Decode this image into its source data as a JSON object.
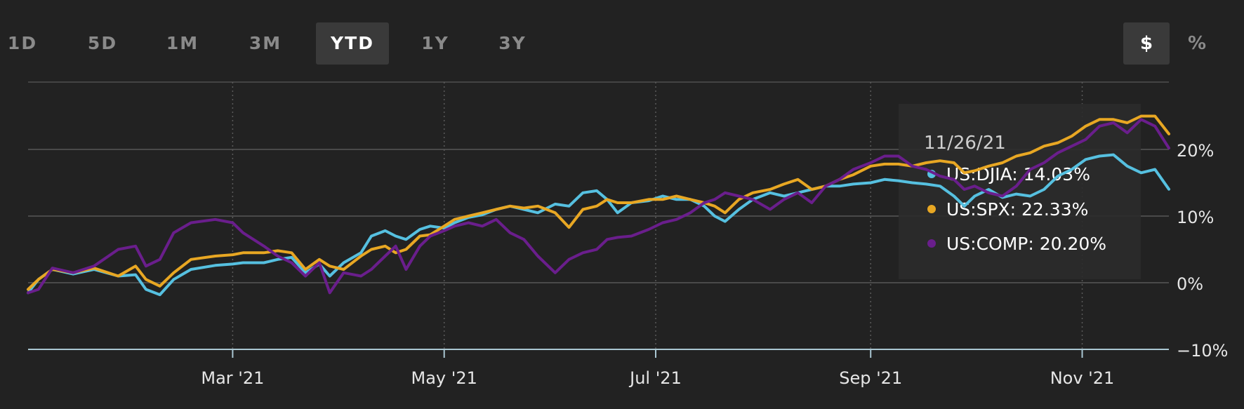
{
  "range_tabs": [
    {
      "label": "1D",
      "active": false
    },
    {
      "label": "5D",
      "active": false
    },
    {
      "label": "1M",
      "active": false
    },
    {
      "label": "3M",
      "active": false
    },
    {
      "label": "YTD",
      "active": true
    },
    {
      "label": "1Y",
      "active": false
    },
    {
      "label": "3Y",
      "active": false
    }
  ],
  "unit_toggle": {
    "dollar": "$",
    "percent": "%",
    "active": "$"
  },
  "colors": {
    "background": "#222222",
    "grid": "#444444",
    "djia": "#56c0e0",
    "spx": "#e8a723",
    "comp": "#6a1e8c",
    "text": "#e0e0e0"
  },
  "tooltip": {
    "date": "11/26/21",
    "items": [
      {
        "label": "US:DJIA: 14.03%",
        "color": "#56c0e0"
      },
      {
        "label": "US:SPX: 22.33%",
        "color": "#e8a723"
      },
      {
        "label": "US:COMP: 20.20%",
        "color": "#6a1e8c"
      }
    ]
  },
  "chart_data": {
    "type": "line",
    "ylim": [
      -10,
      30
    ],
    "y_ticks": [
      20,
      10,
      0,
      -10
    ],
    "y_tick_labels": [
      "20%",
      "10%",
      "0%",
      "−10%"
    ],
    "x_range": [
      "2021-01-01",
      "2021-11-26"
    ],
    "x_ticks": [
      {
        "date": "2021-03-01",
        "label": "Mar '21"
      },
      {
        "date": "2021-05-01",
        "label": "May '21"
      },
      {
        "date": "2021-07-01",
        "label": "Jul '21"
      },
      {
        "date": "2021-09-01",
        "label": "Sep '21"
      },
      {
        "date": "2021-11-01",
        "label": "Nov '21"
      }
    ],
    "grid": true,
    "series": [
      {
        "name": "US:DJIA",
        "color": "#56c0e0",
        "points": [
          [
            "2021-01-01",
            -1.5
          ],
          [
            "2021-01-04",
            0.5
          ],
          [
            "2021-01-08",
            2.0
          ],
          [
            "2021-01-14",
            1.3
          ],
          [
            "2021-01-20",
            2.0
          ],
          [
            "2021-01-27",
            1.0
          ],
          [
            "2021-02-01",
            1.2
          ],
          [
            "2021-02-04",
            -1.0
          ],
          [
            "2021-02-08",
            -1.8
          ],
          [
            "2021-02-12",
            0.5
          ],
          [
            "2021-02-17",
            2.0
          ],
          [
            "2021-02-24",
            2.6
          ],
          [
            "2021-03-01",
            2.8
          ],
          [
            "2021-03-04",
            3.0
          ],
          [
            "2021-03-10",
            3.0
          ],
          [
            "2021-03-14",
            3.5
          ],
          [
            "2021-03-18",
            3.8
          ],
          [
            "2021-03-22",
            1.5
          ],
          [
            "2021-03-26",
            2.8
          ],
          [
            "2021-03-29",
            1.0
          ],
          [
            "2021-04-02",
            3.0
          ],
          [
            "2021-04-07",
            4.5
          ],
          [
            "2021-04-10",
            7.0
          ],
          [
            "2021-04-14",
            7.8
          ],
          [
            "2021-04-17",
            7.0
          ],
          [
            "2021-04-20",
            6.5
          ],
          [
            "2021-04-24",
            8.0
          ],
          [
            "2021-04-27",
            8.5
          ],
          [
            "2021-05-01",
            8.2
          ],
          [
            "2021-05-04",
            9.0
          ],
          [
            "2021-05-08",
            9.8
          ],
          [
            "2021-05-12",
            10.2
          ],
          [
            "2021-05-16",
            11.0
          ],
          [
            "2021-05-20",
            11.5
          ],
          [
            "2021-05-24",
            11.0
          ],
          [
            "2021-05-28",
            10.5
          ],
          [
            "2021-06-02",
            11.8
          ],
          [
            "2021-06-06",
            11.5
          ],
          [
            "2021-06-10",
            13.5
          ],
          [
            "2021-06-14",
            13.8
          ],
          [
            "2021-06-17",
            12.5
          ],
          [
            "2021-06-20",
            10.5
          ],
          [
            "2021-06-24",
            12.0
          ],
          [
            "2021-06-29",
            12.3
          ],
          [
            "2021-07-03",
            13.0
          ],
          [
            "2021-07-07",
            12.5
          ],
          [
            "2021-07-11",
            12.5
          ],
          [
            "2021-07-15",
            11.5
          ],
          [
            "2021-07-18",
            10.0
          ],
          [
            "2021-07-21",
            9.2
          ],
          [
            "2021-07-25",
            11.0
          ],
          [
            "2021-07-29",
            12.5
          ],
          [
            "2021-08-03",
            13.5
          ],
          [
            "2021-08-07",
            13.0
          ],
          [
            "2021-08-11",
            13.5
          ],
          [
            "2021-08-15",
            14.0
          ],
          [
            "2021-08-19",
            14.5
          ],
          [
            "2021-08-23",
            14.5
          ],
          [
            "2021-08-27",
            14.8
          ],
          [
            "2021-09-01",
            15.0
          ],
          [
            "2021-09-05",
            15.5
          ],
          [
            "2021-09-09",
            15.3
          ],
          [
            "2021-09-13",
            15.0
          ],
          [
            "2021-09-17",
            14.8
          ],
          [
            "2021-09-21",
            14.5
          ],
          [
            "2021-09-25",
            13.0
          ],
          [
            "2021-09-28",
            11.5
          ],
          [
            "2021-10-01",
            13.0
          ],
          [
            "2021-10-05",
            14.0
          ],
          [
            "2021-10-09",
            12.8
          ],
          [
            "2021-10-13",
            13.3
          ],
          [
            "2021-10-17",
            13.0
          ],
          [
            "2021-10-21",
            14.0
          ],
          [
            "2021-10-25",
            16.0
          ],
          [
            "2021-10-29",
            17.0
          ],
          [
            "2021-11-02",
            18.5
          ],
          [
            "2021-11-06",
            19.0
          ],
          [
            "2021-11-10",
            19.2
          ],
          [
            "2021-11-14",
            17.5
          ],
          [
            "2021-11-18",
            16.5
          ],
          [
            "2021-11-22",
            17.0
          ],
          [
            "2021-11-26",
            14.03
          ]
        ]
      },
      {
        "name": "US:SPX",
        "color": "#e8a723",
        "points": [
          [
            "2021-01-01",
            -1.0
          ],
          [
            "2021-01-04",
            0.5
          ],
          [
            "2021-01-08",
            2.0
          ],
          [
            "2021-01-14",
            1.5
          ],
          [
            "2021-01-20",
            2.2
          ],
          [
            "2021-01-27",
            1.0
          ],
          [
            "2021-02-01",
            2.5
          ],
          [
            "2021-02-04",
            0.5
          ],
          [
            "2021-02-08",
            -0.5
          ],
          [
            "2021-02-12",
            1.5
          ],
          [
            "2021-02-17",
            3.5
          ],
          [
            "2021-02-24",
            4.0
          ],
          [
            "2021-03-01",
            4.2
          ],
          [
            "2021-03-04",
            4.5
          ],
          [
            "2021-03-10",
            4.5
          ],
          [
            "2021-03-14",
            4.8
          ],
          [
            "2021-03-18",
            4.5
          ],
          [
            "2021-03-22",
            2.0
          ],
          [
            "2021-03-26",
            3.5
          ],
          [
            "2021-03-29",
            2.5
          ],
          [
            "2021-04-02",
            2.0
          ],
          [
            "2021-04-07",
            4.0
          ],
          [
            "2021-04-10",
            5.0
          ],
          [
            "2021-04-14",
            5.5
          ],
          [
            "2021-04-17",
            4.5
          ],
          [
            "2021-04-20",
            5.0
          ],
          [
            "2021-04-24",
            7.0
          ],
          [
            "2021-04-27",
            7.2
          ],
          [
            "2021-05-01",
            8.5
          ],
          [
            "2021-05-04",
            9.5
          ],
          [
            "2021-05-08",
            10.0
          ],
          [
            "2021-05-12",
            10.5
          ],
          [
            "2021-05-16",
            11.0
          ],
          [
            "2021-05-20",
            11.5
          ],
          [
            "2021-05-24",
            11.2
          ],
          [
            "2021-05-28",
            11.5
          ],
          [
            "2021-06-02",
            10.5
          ],
          [
            "2021-06-06",
            8.3
          ],
          [
            "2021-06-10",
            11.0
          ],
          [
            "2021-06-14",
            11.5
          ],
          [
            "2021-06-17",
            12.5
          ],
          [
            "2021-06-20",
            12.0
          ],
          [
            "2021-06-24",
            12.0
          ],
          [
            "2021-06-29",
            12.5
          ],
          [
            "2021-07-03",
            12.5
          ],
          [
            "2021-07-07",
            13.0
          ],
          [
            "2021-07-11",
            12.5
          ],
          [
            "2021-07-15",
            12.0
          ],
          [
            "2021-07-18",
            11.5
          ],
          [
            "2021-07-21",
            10.5
          ],
          [
            "2021-07-25",
            12.5
          ],
          [
            "2021-07-29",
            13.5
          ],
          [
            "2021-08-03",
            14.0
          ],
          [
            "2021-08-07",
            14.8
          ],
          [
            "2021-08-11",
            15.5
          ],
          [
            "2021-08-15",
            14.0
          ],
          [
            "2021-08-19",
            14.5
          ],
          [
            "2021-08-23",
            15.5
          ],
          [
            "2021-08-27",
            16.2
          ],
          [
            "2021-09-01",
            17.5
          ],
          [
            "2021-09-05",
            17.8
          ],
          [
            "2021-09-09",
            17.8
          ],
          [
            "2021-09-13",
            17.5
          ],
          [
            "2021-09-17",
            18.0
          ],
          [
            "2021-09-21",
            18.3
          ],
          [
            "2021-09-25",
            18.0
          ],
          [
            "2021-09-28",
            16.5
          ],
          [
            "2021-10-01",
            16.8
          ],
          [
            "2021-10-05",
            17.5
          ],
          [
            "2021-10-09",
            18.0
          ],
          [
            "2021-10-13",
            19.0
          ],
          [
            "2021-10-17",
            19.5
          ],
          [
            "2021-10-21",
            20.5
          ],
          [
            "2021-10-25",
            21.0
          ],
          [
            "2021-10-29",
            22.0
          ],
          [
            "2021-11-02",
            23.5
          ],
          [
            "2021-11-06",
            24.5
          ],
          [
            "2021-11-10",
            24.5
          ],
          [
            "2021-11-14",
            24.0
          ],
          [
            "2021-11-18",
            25.0
          ],
          [
            "2021-11-22",
            25.0
          ],
          [
            "2021-11-26",
            22.33
          ]
        ]
      },
      {
        "name": "US:COMP",
        "color": "#6a1e8c",
        "points": [
          [
            "2021-01-01",
            -1.5
          ],
          [
            "2021-01-04",
            -1.0
          ],
          [
            "2021-01-08",
            2.2
          ],
          [
            "2021-01-14",
            1.5
          ],
          [
            "2021-01-20",
            2.5
          ],
          [
            "2021-01-27",
            5.0
          ],
          [
            "2021-02-01",
            5.5
          ],
          [
            "2021-02-04",
            2.5
          ],
          [
            "2021-02-08",
            3.5
          ],
          [
            "2021-02-12",
            7.5
          ],
          [
            "2021-02-17",
            9.0
          ],
          [
            "2021-02-24",
            9.5
          ],
          [
            "2021-03-01",
            9.0
          ],
          [
            "2021-03-04",
            7.5
          ],
          [
            "2021-03-10",
            5.5
          ],
          [
            "2021-03-14",
            4.0
          ],
          [
            "2021-03-18",
            3.0
          ],
          [
            "2021-03-22",
            1.0
          ],
          [
            "2021-03-26",
            3.0
          ],
          [
            "2021-03-29",
            -1.5
          ],
          [
            "2021-04-02",
            1.5
          ],
          [
            "2021-04-07",
            1.0
          ],
          [
            "2021-04-10",
            2.0
          ],
          [
            "2021-04-14",
            4.0
          ],
          [
            "2021-04-17",
            5.5
          ],
          [
            "2021-04-20",
            2.0
          ],
          [
            "2021-04-24",
            5.5
          ],
          [
            "2021-04-27",
            7.0
          ],
          [
            "2021-05-01",
            7.8
          ],
          [
            "2021-05-04",
            8.5
          ],
          [
            "2021-05-08",
            9.0
          ],
          [
            "2021-05-12",
            8.5
          ],
          [
            "2021-05-16",
            9.5
          ],
          [
            "2021-05-20",
            7.5
          ],
          [
            "2021-05-24",
            6.5
          ],
          [
            "2021-05-28",
            4.0
          ],
          [
            "2021-06-02",
            1.5
          ],
          [
            "2021-06-06",
            3.5
          ],
          [
            "2021-06-10",
            4.5
          ],
          [
            "2021-06-14",
            5.0
          ],
          [
            "2021-06-17",
            6.5
          ],
          [
            "2021-06-20",
            6.8
          ],
          [
            "2021-06-24",
            7.0
          ],
          [
            "2021-06-29",
            8.0
          ],
          [
            "2021-07-03",
            9.0
          ],
          [
            "2021-07-07",
            9.5
          ],
          [
            "2021-07-11",
            10.5
          ],
          [
            "2021-07-15",
            12.0
          ],
          [
            "2021-07-18",
            12.5
          ],
          [
            "2021-07-21",
            13.5
          ],
          [
            "2021-07-25",
            13.0
          ],
          [
            "2021-07-29",
            12.5
          ],
          [
            "2021-08-03",
            11.0
          ],
          [
            "2021-08-07",
            12.5
          ],
          [
            "2021-08-11",
            13.5
          ],
          [
            "2021-08-15",
            12.0
          ],
          [
            "2021-08-19",
            14.5
          ],
          [
            "2021-08-23",
            15.5
          ],
          [
            "2021-08-27",
            17.0
          ],
          [
            "2021-09-01",
            18.0
          ],
          [
            "2021-09-05",
            19.0
          ],
          [
            "2021-09-09",
            19.0
          ],
          [
            "2021-09-13",
            17.5
          ],
          [
            "2021-09-17",
            17.0
          ],
          [
            "2021-09-21",
            16.0
          ],
          [
            "2021-09-25",
            15.5
          ],
          [
            "2021-09-28",
            14.0
          ],
          [
            "2021-10-01",
            14.5
          ],
          [
            "2021-10-05",
            13.5
          ],
          [
            "2021-10-09",
            13.0
          ],
          [
            "2021-10-13",
            14.5
          ],
          [
            "2021-10-17",
            17.0
          ],
          [
            "2021-10-21",
            18.0
          ],
          [
            "2021-10-25",
            19.5
          ],
          [
            "2021-10-29",
            20.5
          ],
          [
            "2021-11-02",
            21.5
          ],
          [
            "2021-11-06",
            23.5
          ],
          [
            "2021-11-10",
            24.0
          ],
          [
            "2021-11-14",
            22.5
          ],
          [
            "2021-11-18",
            24.5
          ],
          [
            "2021-11-22",
            23.5
          ],
          [
            "2021-11-26",
            20.2
          ]
        ]
      }
    ]
  }
}
